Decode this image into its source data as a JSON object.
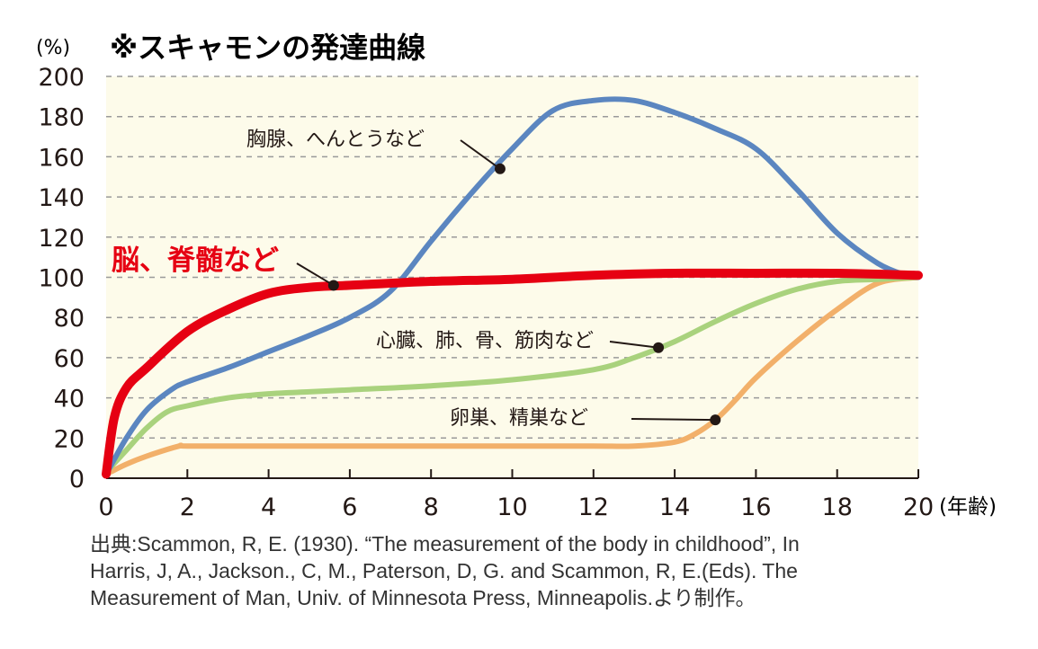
{
  "unit_label": "(%)",
  "source_lines": [
    "出典:Scammon, R, E. (1930). “The measurement of the body in childhood”, In",
    "Harris, J, A., Jackson., C, M., Paterson, D, G. and Scammon, R, E.(Eds). The",
    "Measurement of Man, Univ. of Minnesota Press, Minneapolis.より制作。"
  ],
  "colors": {
    "background": "#fdfbea",
    "grid": "#9a9a9a",
    "axis": "#231815",
    "highlight_label": "#e60012"
  },
  "chart_data": {
    "type": "line",
    "title": "※スキャモンの発達曲線",
    "xlabel": "(年齢)",
    "ylabel": "(%)",
    "xlim": [
      0,
      20
    ],
    "ylim": [
      0,
      200
    ],
    "xticks": [
      0,
      2,
      4,
      6,
      8,
      10,
      12,
      14,
      16,
      18,
      20
    ],
    "yticks": [
      0,
      20,
      40,
      60,
      80,
      100,
      120,
      140,
      160,
      180,
      200
    ],
    "grid": true,
    "series": [
      {
        "name": "胸腺、へんとうなど",
        "color": "#5b86c0",
        "marker_at": [
          9.7,
          154
        ],
        "x": [
          0,
          0.5,
          1,
          1.6,
          2,
          3,
          4,
          5,
          6,
          7,
          8,
          9,
          10,
          11,
          12,
          13,
          14,
          15,
          16,
          17,
          18,
          19,
          19.7,
          20
        ],
        "y": [
          2,
          20,
          34,
          44,
          48,
          55,
          63,
          71,
          80,
          93,
          118,
          142,
          164,
          183,
          188,
          188,
          182,
          174,
          164,
          144,
          122,
          107,
          101,
          100
        ]
      },
      {
        "name": "脳、脊髄など",
        "color": "#e60012",
        "marker_at": [
          5.6,
          96
        ],
        "x": [
          0,
          0.2,
          0.5,
          1,
          2,
          3,
          4,
          5,
          6,
          8,
          10,
          12,
          14,
          16,
          18,
          20
        ],
        "y": [
          2,
          30,
          45,
          55,
          73,
          84,
          92,
          95,
          96,
          98,
          99,
          101,
          102,
          102,
          102,
          101
        ]
      },
      {
        "name": "心臓、肺、骨、筋肉など",
        "color": "#a9d27d",
        "marker_at": [
          13.6,
          65
        ],
        "x": [
          0,
          0.5,
          1,
          1.5,
          2,
          3,
          4,
          5,
          6,
          8,
          10,
          12,
          13,
          14,
          15,
          16,
          17,
          18,
          19,
          20
        ],
        "y": [
          3,
          14,
          25,
          33,
          36,
          40,
          42,
          43,
          44,
          46,
          49,
          54,
          60,
          68,
          78,
          87,
          94,
          98,
          99,
          100
        ]
      },
      {
        "name": "卵巣、精巣など",
        "color": "#f2b06a",
        "marker_at": [
          15,
          29
        ],
        "x": [
          0,
          0.5,
          1,
          1.8,
          2,
          4,
          6,
          8,
          10,
          12,
          13,
          14,
          14.5,
          15,
          15.5,
          16,
          17,
          18,
          19,
          20
        ],
        "y": [
          2,
          7,
          11,
          16,
          16,
          16,
          16,
          16,
          16,
          16,
          16,
          18,
          22,
          29,
          39,
          50,
          68,
          84,
          97,
          100
        ]
      }
    ]
  }
}
